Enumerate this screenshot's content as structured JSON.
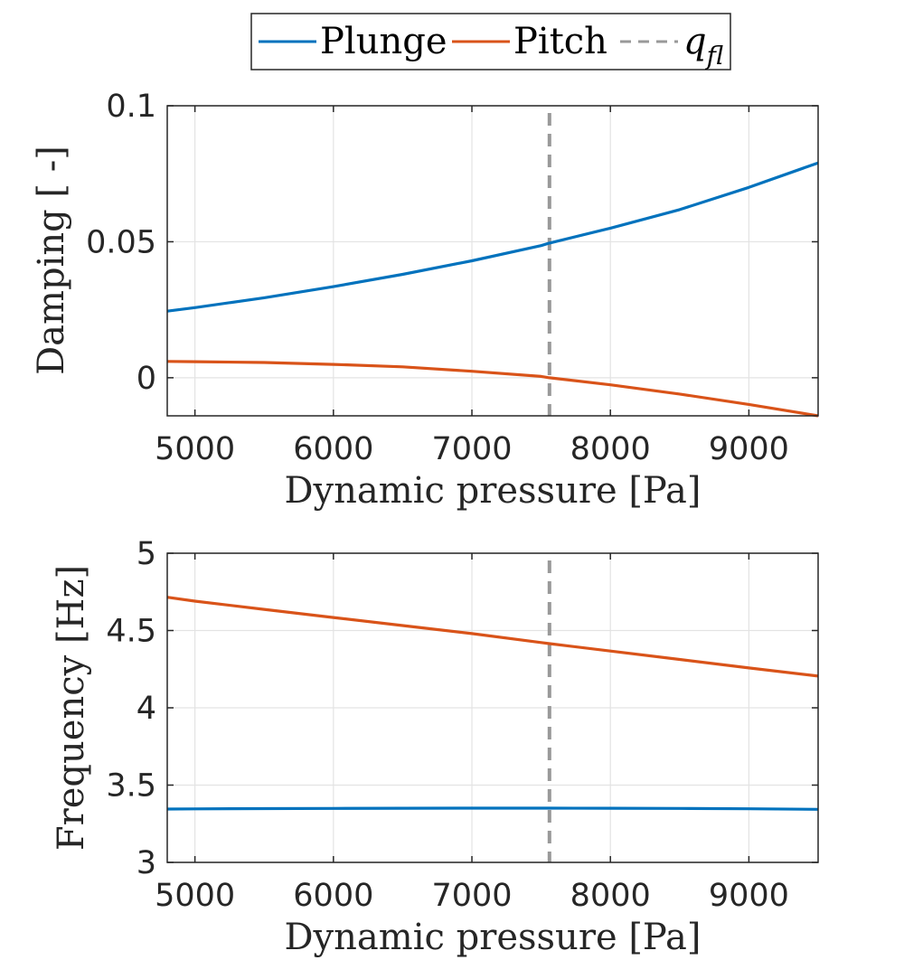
{
  "legend": {
    "entries": [
      {
        "label": "Plunge",
        "color": "#0072BD",
        "style": "solid"
      },
      {
        "label": "Pitch",
        "color": "#D95319",
        "style": "solid"
      },
      {
        "label_main": "q",
        "label_sub": "fl",
        "color": "#999999",
        "style": "dashed"
      }
    ],
    "placement": "top-center, outside axes"
  },
  "chart_data": [
    {
      "type": "line",
      "xlabel": "Dynamic pressure [Pa]",
      "ylabel": "Damping [ -]",
      "xlim": [
        4800,
        9500
      ],
      "ylim": [
        -0.014,
        0.1
      ],
      "xticks": [
        "5000",
        "6000",
        "7000",
        "8000",
        "9000"
      ],
      "yticks": [
        "0",
        "0.05",
        "0.1"
      ],
      "ytick_values": [
        0,
        0.05,
        0.1
      ],
      "xtick_values": [
        5000,
        6000,
        7000,
        8000,
        9000
      ],
      "grid": true,
      "flutter_q": 7560,
      "x": [
        4800,
        5000,
        5500,
        6000,
        6500,
        7000,
        7500,
        7560,
        8000,
        8500,
        9000,
        9500
      ],
      "series": [
        {
          "name": "Plunge",
          "color": "#0072BD",
          "values": [
            0.0245,
            0.0258,
            0.0294,
            0.0335,
            0.038,
            0.043,
            0.0486,
            0.0495,
            0.055,
            0.0618,
            0.07,
            0.079
          ]
        },
        {
          "name": "Pitch",
          "color": "#D95319",
          "values": [
            0.006,
            0.0059,
            0.0056,
            0.0049,
            0.004,
            0.0024,
            0.0005,
            0.0,
            -0.0026,
            -0.006,
            -0.0098,
            -0.014
          ]
        }
      ]
    },
    {
      "type": "line",
      "xlabel": "Dynamic pressure [Pa]",
      "ylabel": "Frequency [Hz]",
      "xlim": [
        4800,
        9500
      ],
      "ylim": [
        3,
        5
      ],
      "xticks": [
        "5000",
        "6000",
        "7000",
        "8000",
        "9000"
      ],
      "yticks": [
        "3",
        "3.5",
        "4",
        "4.5",
        "5"
      ],
      "ytick_values": [
        3,
        3.5,
        4,
        4.5,
        5
      ],
      "xtick_values": [
        5000,
        6000,
        7000,
        8000,
        9000
      ],
      "grid": true,
      "flutter_q": 7560,
      "x": [
        4800,
        5000,
        5500,
        6000,
        6500,
        7000,
        7500,
        7560,
        8000,
        8500,
        9000,
        9500
      ],
      "series": [
        {
          "name": "Plunge",
          "color": "#0072BD",
          "values": [
            3.345,
            3.346,
            3.348,
            3.349,
            3.35,
            3.351,
            3.351,
            3.351,
            3.35,
            3.349,
            3.347,
            3.343
          ]
        },
        {
          "name": "Pitch",
          "color": "#D95319",
          "values": [
            4.715,
            4.69,
            4.637,
            4.584,
            4.532,
            4.48,
            4.422,
            4.415,
            4.367,
            4.313,
            4.258,
            4.205
          ]
        }
      ]
    }
  ]
}
